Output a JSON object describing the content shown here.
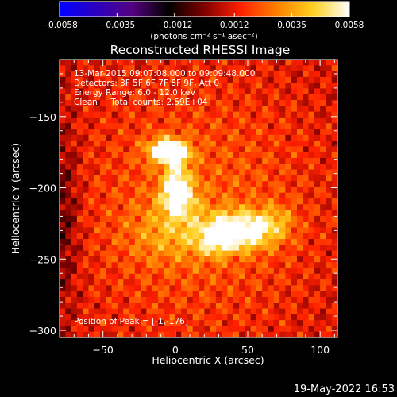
{
  "chart_data": {
    "type": "heatmap",
    "title": "Reconstructed RHESSI Image",
    "xlabel": "Heliocentric X (arcsec)",
    "ylabel": "Heliocentric Y (arcsec)",
    "xlim": [
      -80,
      112
    ],
    "ylim": [
      -305,
      -110
    ],
    "xticks": [
      -50,
      0,
      50,
      100
    ],
    "xtick_labels": [
      "−50",
      "0",
      "50",
      "100"
    ],
    "yticks": [
      -150,
      -200,
      -250,
      -300
    ],
    "ytick_labels": [
      "−150",
      "−200",
      "−250",
      "−300"
    ],
    "colorbar": {
      "range": [
        -0.0058,
        0.0058
      ],
      "ticks": [
        -0.0058,
        -0.0035,
        -0.0012,
        0.0012,
        0.0035,
        0.0058
      ],
      "tick_labels": [
        "−0.0058",
        "−0.0035",
        "−0.0012",
        "0.0012",
        "0.0035",
        "0.0058"
      ],
      "unit_label": "(photons cm⁻² s⁻¹ asec⁻²)",
      "colors": [
        "#0000ff",
        "#2a00c0",
        "#550080",
        "#000000",
        "#800000",
        "#ff2000",
        "#ff8000",
        "#ffd020",
        "#ffffff"
      ]
    },
    "annotations": [
      "13-Mar-2015 09:07:08.000 to 09:09:48.000",
      "Detectors: 3F 5F 6F 7F 8F 9F, Att 0",
      "Energy Range: 6.0 - 12.0 keV",
      "Clean     Total counts: 2.59E+04"
    ],
    "peak_label": "Position of Peak = [-1,-176]",
    "peak": [
      -1,
      -176
    ],
    "sources": [
      {
        "x": -6,
        "y": -174,
        "sx": 9,
        "sy": 6,
        "a": 0.0052
      },
      {
        "x": 4,
        "y": -176,
        "sx": 6,
        "sy": 5,
        "a": 0.0018
      },
      {
        "x": 2,
        "y": -206,
        "sx": 8,
        "sy": 10,
        "a": 0.0044
      },
      {
        "x": 0,
        "y": -190,
        "sx": 5,
        "sy": 8,
        "a": 0.0022
      },
      {
        "x": 45,
        "y": -230,
        "sx": 17,
        "sy": 9,
        "a": 0.005
      },
      {
        "x": 28,
        "y": -238,
        "sx": 9,
        "sy": 7,
        "a": 0.0022
      },
      {
        "x": -4,
        "y": -232,
        "sx": 20,
        "sy": 14,
        "a": 0.0015
      },
      {
        "x": 70,
        "y": -222,
        "sx": 9,
        "sy": 8,
        "a": 0.0012
      },
      {
        "x": 15,
        "y": -215,
        "sx": 65,
        "sy": 70,
        "a": 0.0016
      },
      {
        "x": -78,
        "y": -220,
        "sx": 8,
        "sy": 45,
        "a": -0.0016
      }
    ],
    "background": 0.0008
  },
  "footer": {
    "date": "19-May-2022 16:53"
  }
}
